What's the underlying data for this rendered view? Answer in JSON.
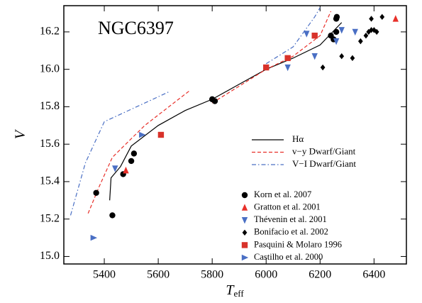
{
  "chart_data": {
    "type": "scatter",
    "annotation": "NGC6397",
    "xlabel_main": "T",
    "xlabel_sub": "eff",
    "ylabel": "V",
    "xlim": [
      5250,
      6520
    ],
    "ylim": [
      14.96,
      16.34
    ],
    "xticks": [
      5400,
      5600,
      5800,
      6000,
      6200,
      6400
    ],
    "yticks": [
      {
        "value": 15,
        "label": "15.0"
      },
      15.2,
      15.4,
      15.6,
      15.8,
      {
        "value": 16,
        "label": "16.0"
      },
      16.2
    ],
    "lines": [
      {
        "name": "Hα",
        "color": "#000000",
        "dash": "solid",
        "x": [
          5420,
          5425,
          5460,
          5500,
          5600,
          5700,
          5800,
          5900,
          6000,
          6100,
          6200,
          6280
        ],
        "y": [
          15.3,
          15.42,
          15.48,
          15.59,
          15.7,
          15.78,
          15.84,
          15.92,
          16.0,
          16.06,
          16.13,
          16.25
        ]
      },
      {
        "name": "v−y Dwarf/Giant",
        "color": "#e8302a",
        "dash": "dashed",
        "x": [
          5340,
          5380,
          5430,
          5550,
          5720,
          null,
          5800,
          6000,
          6100,
          6200,
          6240
        ],
        "y": [
          15.23,
          15.37,
          15.53,
          15.7,
          15.89,
          null,
          15.82,
          16.0,
          16.07,
          16.18,
          16.31
        ]
      },
      {
        "name": "V−I Dwarf/Giant",
        "color": "#4a6fc4",
        "dash": "dashdot",
        "x": [
          5275,
          5330,
          5400,
          5640,
          null,
          6000,
          6100,
          6180,
          6200
        ],
        "y": [
          15.22,
          15.5,
          15.72,
          15.88,
          null,
          16.03,
          16.12,
          16.28,
          16.33
        ]
      }
    ],
    "series": [
      {
        "name": "Korn et al. 2007",
        "color": "#000000",
        "marker": "circle",
        "x": [
          5370,
          5430,
          5470,
          5500,
          5510,
          5800,
          5810,
          6240,
          6250,
          6260,
          6260,
          6262
        ],
        "values": [
          15.34,
          15.22,
          15.44,
          15.51,
          15.55,
          15.84,
          15.83,
          16.18,
          16.16,
          16.2,
          16.27,
          16.28
        ]
      },
      {
        "name": "Gratton et al. 2001",
        "color": "#e8302a",
        "marker": "triangle-up",
        "x": [
          5480,
          6480
        ],
        "values": [
          15.46,
          16.27
        ]
      },
      {
        "name": "Thévenin et al. 2001",
        "color": "#4a6fc4",
        "marker": "triangle-down",
        "x": [
          5440,
          6150,
          6180,
          6080,
          6260,
          6280,
          6330
        ],
        "values": [
          15.47,
          16.19,
          16.07,
          16.01,
          16.15,
          16.21,
          16.2
        ]
      },
      {
        "name": "Bonifacio et al. 2002",
        "color": "#000000",
        "marker": "diamond",
        "x": [
          6210,
          6280,
          6320,
          6350,
          6370,
          6380,
          6390,
          6400,
          6410,
          6390,
          6430
        ],
        "values": [
          16.01,
          16.07,
          16.06,
          16.15,
          16.18,
          16.2,
          16.21,
          16.21,
          16.2,
          16.27,
          16.28
        ]
      },
      {
        "name": "Pasquini & Molaro 1996",
        "color": "#d8322a",
        "marker": "square",
        "x": [
          5610,
          6000,
          6080,
          6180
        ],
        "values": [
          15.65,
          16.01,
          16.06,
          16.18
        ]
      },
      {
        "name": "Castilho et al. 2000",
        "color": "#4a6fc4",
        "marker": "triangle-right",
        "x": [
          5360,
          5540
        ],
        "values": [
          15.1,
          15.65
        ]
      }
    ]
  }
}
